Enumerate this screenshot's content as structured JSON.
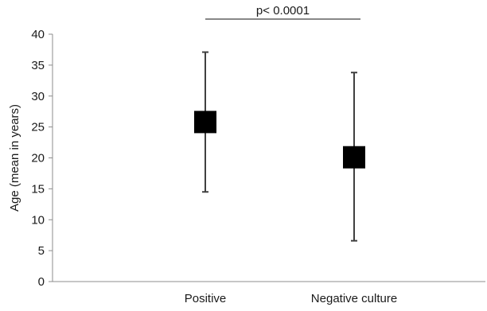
{
  "chart_data": {
    "type": "scatter",
    "categories": [
      "Positive",
      "Negative culture"
    ],
    "series": [
      {
        "means": [
          25.8,
          20.1
        ],
        "lower": [
          14.5,
          6.6
        ],
        "upper": [
          37.1,
          33.8
        ]
      }
    ],
    "ylabel": "Age (mean in years)",
    "xlabel": "",
    "ylim": [
      0,
      40
    ],
    "yticks": [
      0,
      5,
      10,
      15,
      20,
      25,
      30,
      35,
      40
    ],
    "annotation": {
      "text": "p< 0.0001",
      "between": [
        "Positive",
        "Negative culture"
      ]
    },
    "grid": false,
    "legend": "none",
    "colors": {
      "marker": "#000000",
      "error_bar": "#404040",
      "axis": "#8c8c8c",
      "bracket": "#404040"
    }
  }
}
